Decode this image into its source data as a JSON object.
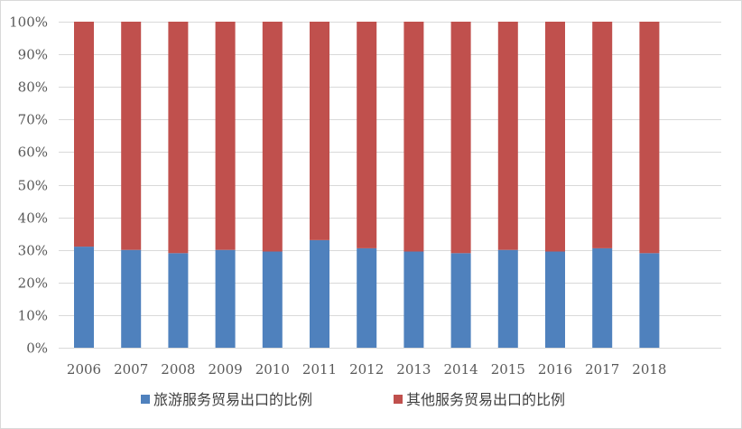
{
  "chart_data": {
    "type": "bar",
    "stacked": true,
    "normalized": true,
    "title": "",
    "xlabel": "",
    "ylabel": "",
    "ylim": [
      0,
      100
    ],
    "ytick_step": 10,
    "ytick_suffix": "%",
    "grid": true,
    "legend_position": "bottom",
    "categories": [
      "2006",
      "2007",
      "2008",
      "2009",
      "2010",
      "2011",
      "2012",
      "2013",
      "2014",
      "2015",
      "2016",
      "2017",
      "2018"
    ],
    "series": [
      {
        "name": "旅游服务贸易出口的比例",
        "color": "#4f81bd",
        "values": [
          31,
          30,
          29,
          30,
          29.5,
          33,
          30.5,
          29.5,
          29,
          30,
          29.5,
          30.5,
          29
        ]
      },
      {
        "name": "其他服务贸易出口的比例",
        "color": "#c0504d",
        "values": [
          69,
          70,
          71,
          70,
          70.5,
          67,
          69.5,
          70.5,
          71,
          70,
          70.5,
          69.5,
          71
        ]
      }
    ],
    "colors": {
      "grid": "#d9d9d9",
      "axis": "#d9d9d9",
      "text": "#595959"
    }
  }
}
